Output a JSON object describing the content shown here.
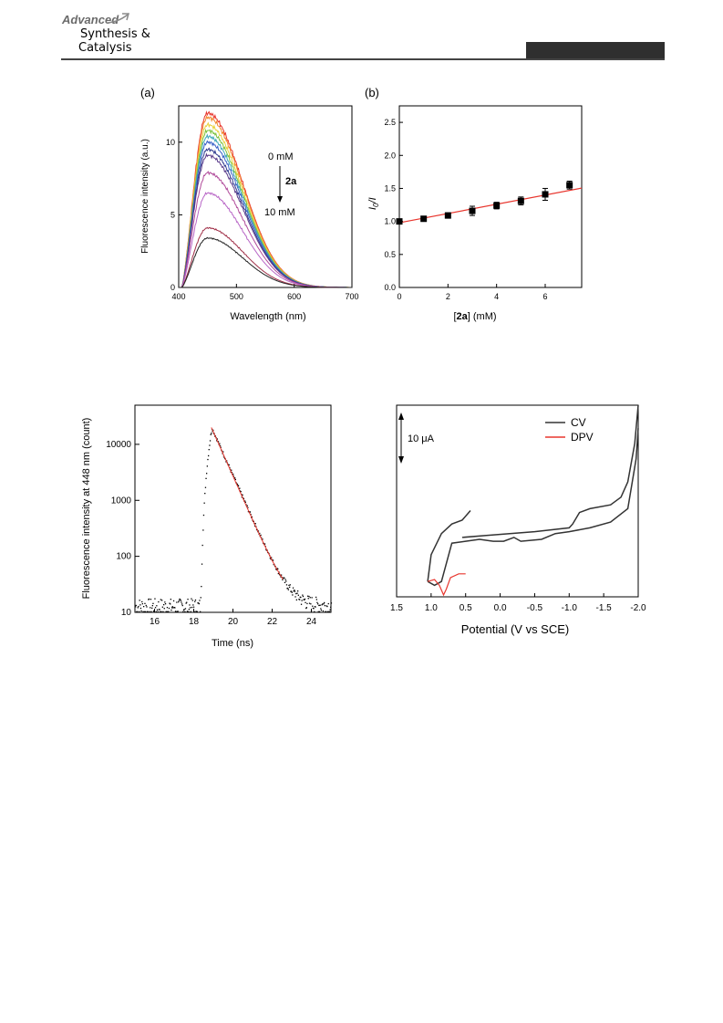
{
  "header": {
    "logo_line1": "Advanced",
    "logo_line2": "Synthesis &",
    "logo_line3": "Catalysis"
  },
  "chart_data": [
    {
      "type": "line",
      "panel": "(a)",
      "xlabel": "Wavelength (nm)",
      "ylabel": "Fluorescence intensity (a.u.)",
      "xlim": [
        400,
        700
      ],
      "ylim": [
        0,
        12.5
      ],
      "xticks": [
        400,
        500,
        600,
        700
      ],
      "yticks": [
        0,
        5,
        10
      ],
      "annotations": {
        "top": "0 mM",
        "middle": "2a",
        "bottom": "10 mM"
      },
      "peak_x": 450,
      "series": [
        {
          "peak": 12.0,
          "color": "#e8362e"
        },
        {
          "peak": 11.7,
          "color": "#f28a2e"
        },
        {
          "peak": 11.2,
          "color": "#e8d23a"
        },
        {
          "peak": 10.8,
          "color": "#7cc23e"
        },
        {
          "peak": 10.4,
          "color": "#3fa8b8"
        },
        {
          "peak": 10.0,
          "color": "#3a62c8"
        },
        {
          "peak": 9.5,
          "color": "#2f3a8e"
        },
        {
          "peak": 9.1,
          "color": "#5a3a8a"
        },
        {
          "peak": 7.9,
          "color": "#b04a9a"
        },
        {
          "peak": 6.5,
          "color": "#b866c6"
        },
        {
          "peak": 4.1,
          "color": "#a03048"
        },
        {
          "peak": 3.4,
          "color": "#222222"
        }
      ]
    },
    {
      "type": "scatter",
      "panel": "(b)",
      "xlabel_pre": "[",
      "xlabel_bold": "2a",
      "xlabel_post": "] (mM)",
      "ylabel_main": "I",
      "ylabel_sub": "0",
      "ylabel_post": "/I",
      "xlim": [
        0,
        7.5
      ],
      "ylim": [
        0,
        2.75
      ],
      "xticks": [
        0,
        2,
        4,
        6
      ],
      "yticks": [
        0.0,
        0.5,
        1.0,
        1.5,
        2.0,
        2.5
      ],
      "x": [
        0,
        1,
        2,
        3,
        4,
        5,
        6,
        7
      ],
      "y": [
        1.0,
        1.04,
        1.09,
        1.16,
        1.24,
        1.31,
        1.41,
        1.55
      ],
      "err": [
        0.03,
        0.03,
        0.04,
        0.07,
        0.05,
        0.06,
        0.09,
        0.06
      ],
      "fit": {
        "intercept": 0.98,
        "slope": 0.07,
        "color": "#e8362e"
      }
    },
    {
      "type": "scatter",
      "panel": "",
      "xlabel": "Time (ns)",
      "ylabel": "Fluorescence intensity at 448 nm (count)",
      "xlim": [
        15,
        25
      ],
      "ylim": [
        10,
        50000
      ],
      "log_y": true,
      "xticks": [
        16,
        18,
        20,
        22,
        24
      ],
      "yticks": [
        10,
        100,
        1000,
        10000
      ],
      "peak_time": 18.9,
      "peak_count": 20000,
      "background_count": 13,
      "fit_color": "#e8362e"
    },
    {
      "type": "line",
      "panel": "",
      "xlabel": "Potential (V vs SCE)",
      "xlim": [
        1.5,
        -2.0
      ],
      "xticks": [
        1.5,
        1.0,
        0.5,
        0.0,
        -0.5,
        -1.0,
        -1.5,
        -2.0
      ],
      "scale_label": "10 μA",
      "series": [
        {
          "name": "CV",
          "color": "#333333"
        },
        {
          "name": "DPV",
          "color": "#e8362e"
        }
      ]
    }
  ]
}
